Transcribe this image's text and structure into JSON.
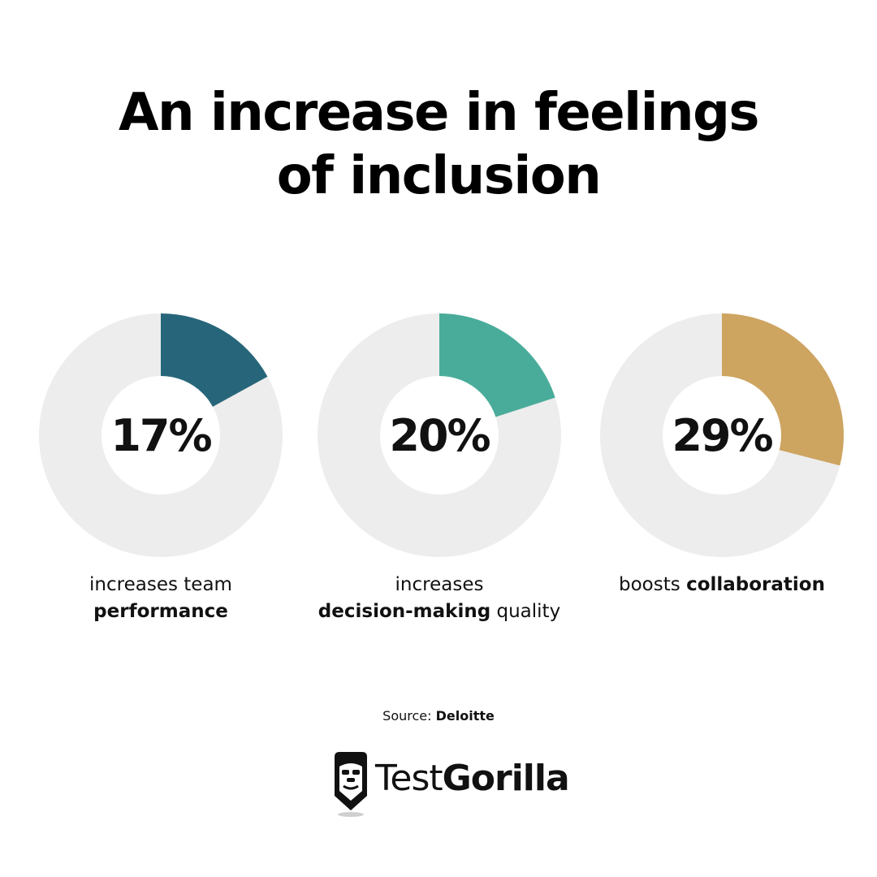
{
  "title": {
    "line1": "An increase in feelings",
    "line2": "of inclusion"
  },
  "chart_data": [
    {
      "type": "pie",
      "value": 17,
      "label": "17%",
      "caption_pre": "increases team",
      "caption_bold": "performance",
      "caption_post": "",
      "color": "#27667A",
      "track_color": "#EDEDED"
    },
    {
      "type": "pie",
      "value": 20,
      "label": "20%",
      "caption_pre": "increases",
      "caption_bold": "decision-making",
      "caption_post": "quality",
      "color": "#49AC9A",
      "track_color": "#EDEDED"
    },
    {
      "type": "pie",
      "value": 29,
      "label": "29%",
      "caption_pre": "boosts",
      "caption_bold": "collaboration",
      "caption_post": "",
      "color": "#CDA460",
      "track_color": "#EDEDED"
    }
  ],
  "source": {
    "prefix": "Source:",
    "name": "Deloitte"
  },
  "brand": {
    "name_light": "Test",
    "name_bold": "Gorilla",
    "icon": "gorilla-logo-icon"
  }
}
